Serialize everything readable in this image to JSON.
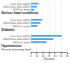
{
  "chart_data": {
    "type": "bar",
    "orientation": "horizontal",
    "categories": [
      "Less than 100%",
      "100%-less than 200%",
      "200% or more",
      "Less than 100%",
      "100%-less than 200%",
      "200% or more",
      "Less than 100%",
      "100%-less than 200%",
      "200% or more"
    ],
    "values": [
      13,
      10,
      6,
      19,
      16,
      11,
      51,
      37,
      26
    ],
    "annotations": [
      "Serious heart conditions",
      "Diabetes",
      "Hypertension",
      "Percent of poverty level:"
    ],
    "xlabel": "Percent",
    "color": "#4da6d9",
    "xlim": [
      0,
      60
    ],
    "xticks": [
      0,
      10,
      20,
      30,
      40,
      50,
      60
    ],
    "grid": true
  }
}
